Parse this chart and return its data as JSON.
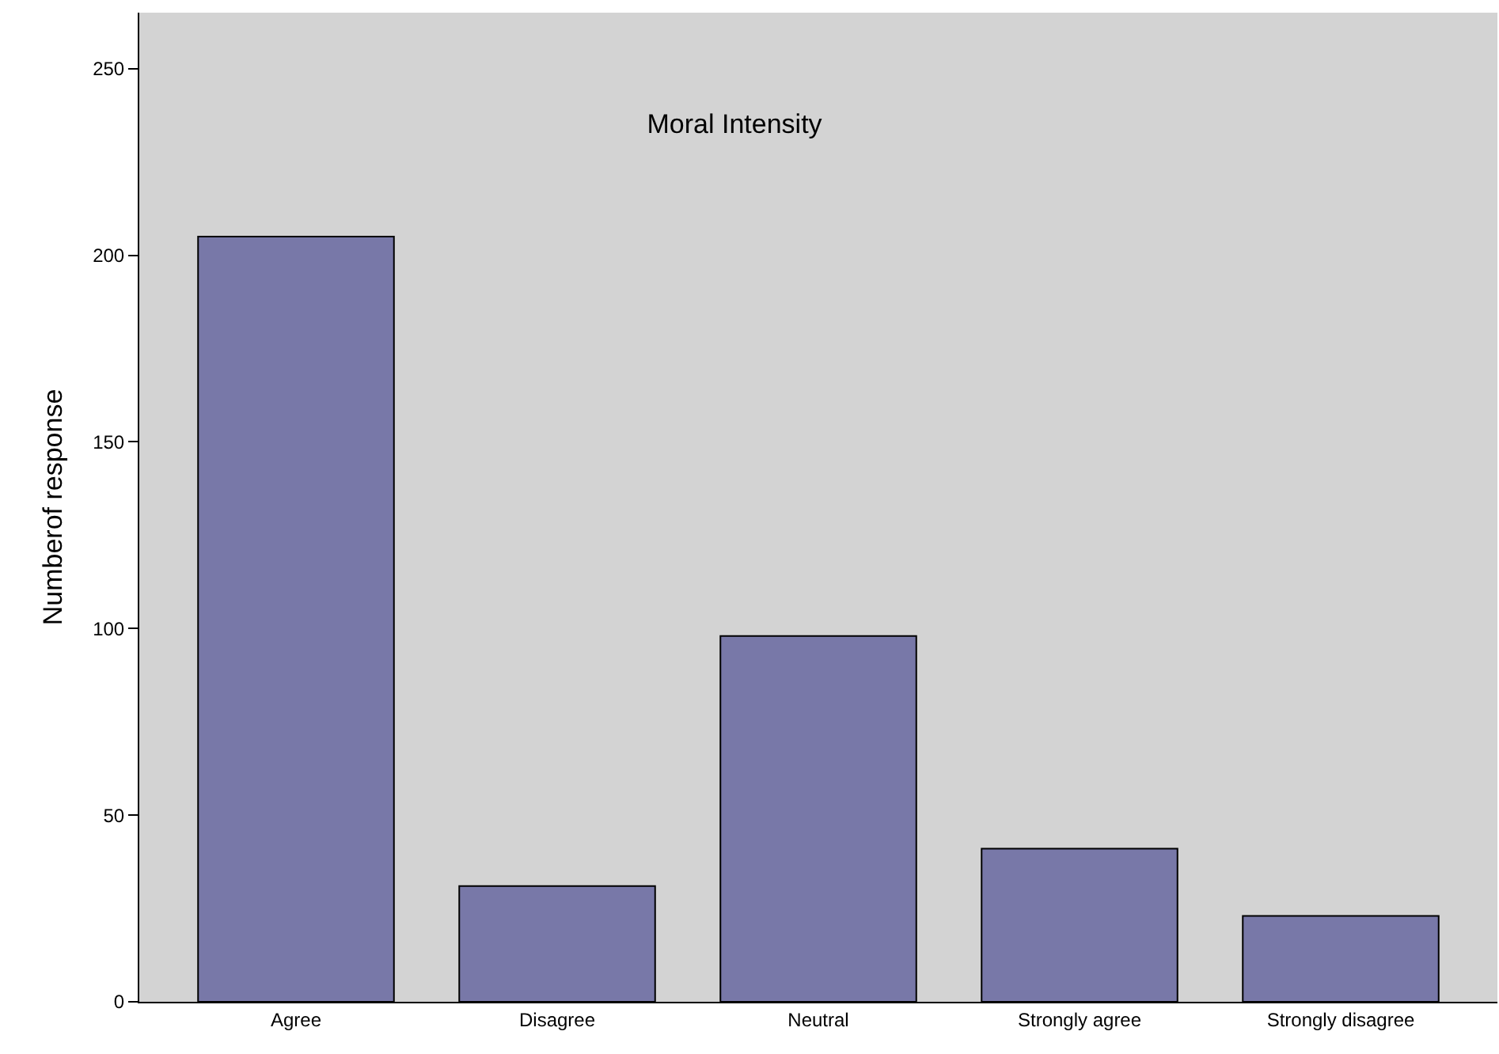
{
  "chart_data": {
    "type": "bar",
    "title": "Moral Intensity",
    "ylabel": "Numberof response",
    "categories": [
      "Agree",
      "Disagree",
      "Neutral",
      "Strongly agree",
      "Strongly disagree"
    ],
    "values": [
      205,
      31,
      98,
      41,
      23
    ],
    "color": "#7878a8",
    "ylim": [
      0,
      265
    ],
    "yticks": [
      0,
      50,
      100,
      150,
      200,
      250
    ],
    "grid": false,
    "legend": false
  }
}
